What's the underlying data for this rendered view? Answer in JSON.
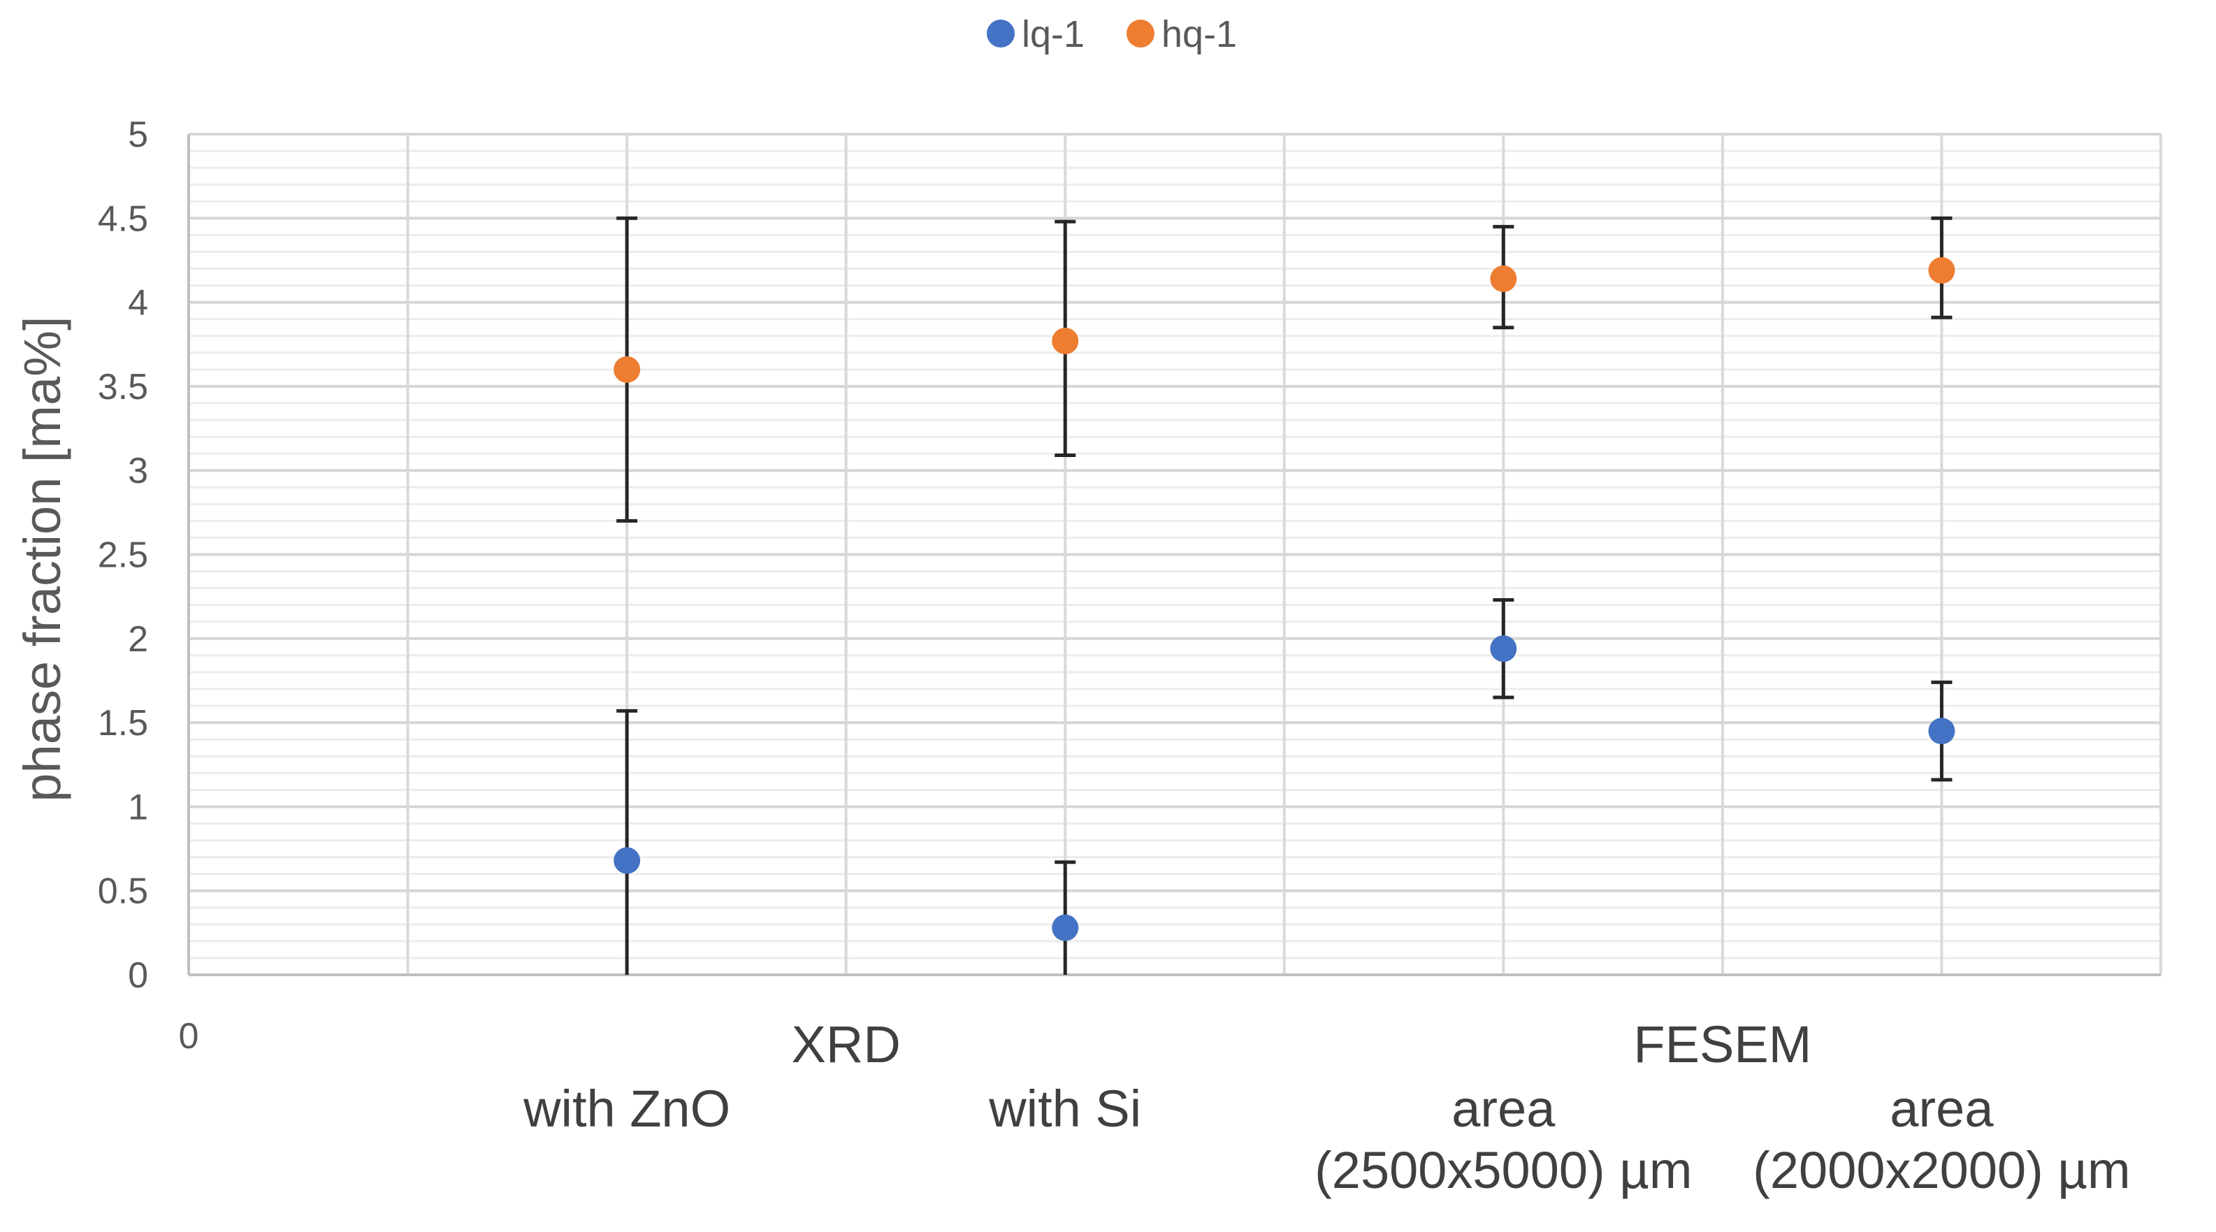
{
  "chart_data": {
    "type": "scatter",
    "title": "",
    "ylabel": "phase fraction [ma%]",
    "xlabel": "",
    "ylim": [
      0,
      5
    ],
    "yticks": [
      "0",
      "0.5",
      "1",
      "1.5",
      "2",
      "2.5",
      "3",
      "3.5",
      "4",
      "4.5",
      "5"
    ],
    "x_origin_label": "0",
    "grid": true,
    "legend_position": "top-center",
    "groups": [
      {
        "label": "XRD"
      },
      {
        "label": "FESEM"
      }
    ],
    "categories": [
      {
        "line1": "with  ZnO",
        "line2": ""
      },
      {
        "line1": "with  Si",
        "line2": ""
      },
      {
        "line1": "area",
        "line2": "(2500x5000) µm"
      },
      {
        "line1": "area",
        "line2": "(2000x2000) µm"
      }
    ],
    "series": [
      {
        "name": "lq-1",
        "color": "#4472C4",
        "values": [
          0.68,
          0.28,
          1.94,
          1.45
        ],
        "error_low": [
          0.0,
          0.0,
          1.65,
          1.16
        ],
        "error_high": [
          1.57,
          0.67,
          2.23,
          1.74
        ]
      },
      {
        "name": "hq-1",
        "color": "#ED7D31",
        "values": [
          3.6,
          3.77,
          4.14,
          4.19
        ],
        "error_low": [
          2.7,
          3.09,
          3.85,
          3.91
        ],
        "error_high": [
          4.5,
          4.48,
          4.45,
          4.5
        ]
      }
    ]
  }
}
